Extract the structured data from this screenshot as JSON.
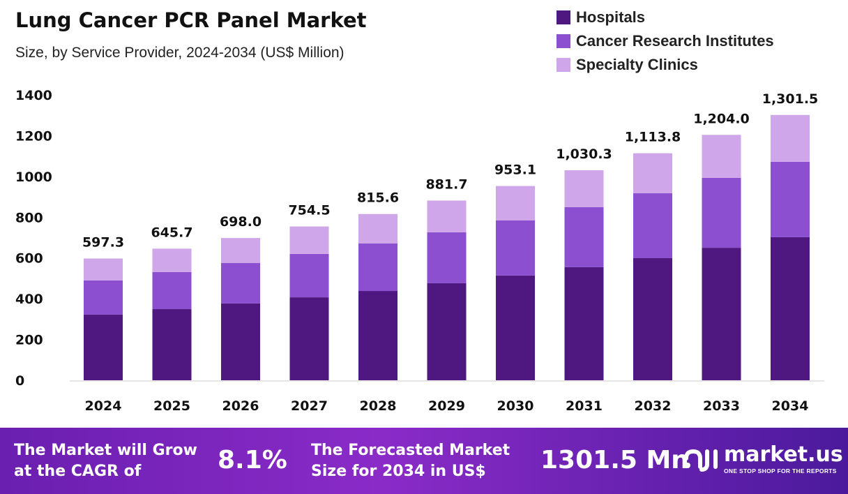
{
  "chart_data": {
    "type": "bar",
    "stacked": true,
    "title": "Lung Cancer PCR Panel Market",
    "subtitle": "Size, by Service Provider, 2024-2034 (US$ Million)",
    "categories": [
      "2024",
      "2025",
      "2026",
      "2027",
      "2028",
      "2029",
      "2030",
      "2031",
      "2032",
      "2033",
      "2034"
    ],
    "series": [
      {
        "name": "Hospitals",
        "color": "#4f1780",
        "values": [
          322,
          349,
          377,
          407,
          438,
          476,
          514,
          555,
          599,
          650,
          702
        ]
      },
      {
        "name": "Cancer Research Institutes",
        "color": "#8b4fcf",
        "values": [
          168,
          182,
          198,
          213,
          233,
          250,
          270,
          294,
          319,
          343,
          370
        ]
      },
      {
        "name": "Specialty Clinics",
        "color": "#cfa6ea",
        "values": [
          107.3,
          114.7,
          123,
          134.5,
          144.6,
          155.7,
          169.1,
          181.3,
          195.8,
          211,
          229.5
        ]
      }
    ],
    "totals_labels": [
      "597.3",
      "645.7",
      "698.0",
      "754.5",
      "815.6",
      "881.7",
      "953.1",
      "1,030.3",
      "1,113.8",
      "1,204.0",
      "1,301.5"
    ],
    "yticks": [
      "0",
      "200",
      "400",
      "600",
      "800",
      "1000",
      "1200",
      "1400"
    ],
    "ylim": [
      0,
      1400
    ],
    "grid": false,
    "legend_position": "top-right"
  },
  "footer": {
    "cagr_text_1": "The Market will Grow",
    "cagr_text_2": "at the CAGR of",
    "cagr_value": "8.1%",
    "forecast_text_1": "The Forecasted Market",
    "forecast_text_2": "Size for 2034 in US$",
    "forecast_value": "1301.5 Mn",
    "brand": "market.us",
    "brand_tagline": "ONE STOP SHOP FOR THE REPORTS"
  }
}
